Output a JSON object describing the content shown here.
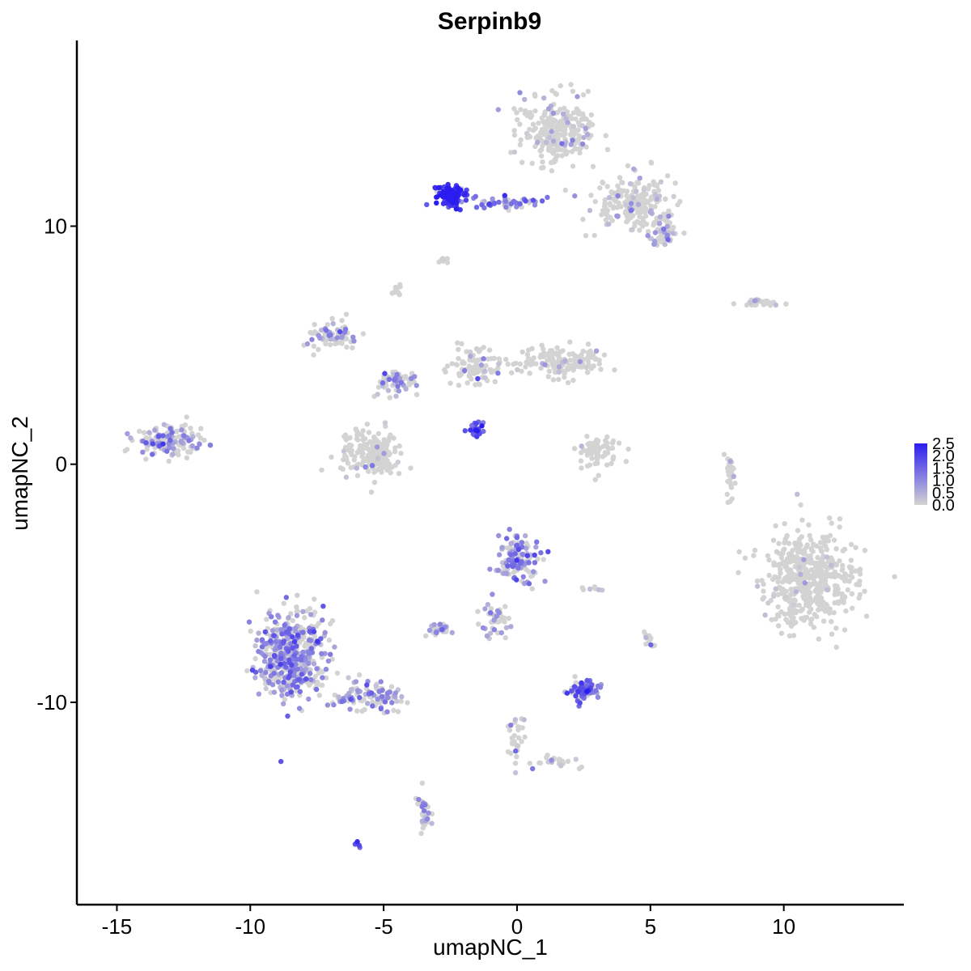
{
  "chart_data": {
    "type": "scatter",
    "title": "Serpinb9",
    "xlabel": "umapNC_1",
    "ylabel": "umapNC_2",
    "xlim": [
      -16.5,
      14.5
    ],
    "ylim": [
      -18.5,
      17.8
    ],
    "x_ticks": [
      -15,
      -10,
      -5,
      0,
      5,
      10
    ],
    "x_tick_labels": [
      "-15",
      "-10",
      "-5",
      "0",
      "5",
      "10"
    ],
    "y_ticks": [
      -10,
      0,
      10
    ],
    "y_tick_labels": [
      "-10",
      "0",
      "10"
    ],
    "grid": false,
    "legend_position": "right",
    "colorbar": {
      "min": 0.0,
      "max": 2.5,
      "ticks": [
        0.0,
        0.5,
        1.0,
        1.5,
        2.0,
        2.5
      ],
      "tick_labels": [
        "0.0",
        "0.5",
        "1.0",
        "1.5",
        "2.0",
        "2.5"
      ],
      "low_color": "#d3d3d3",
      "high_color": "#2b1cf0"
    },
    "clusters": [
      {
        "center": [
          1.5,
          14.0
        ],
        "spread": [
          1.2,
          1.3
        ],
        "n": 260,
        "expr": 0.25
      },
      {
        "center": [
          4.2,
          11.0
        ],
        "spread": [
          1.3,
          1.0
        ],
        "n": 200,
        "expr": 0.3
      },
      {
        "center": [
          5.5,
          9.8
        ],
        "spread": [
          0.5,
          0.6
        ],
        "n": 60,
        "expr": 0.6
      },
      {
        "center": [
          -2.5,
          11.3
        ],
        "spread": [
          0.5,
          0.4
        ],
        "n": 130,
        "expr": 2.2
      },
      {
        "center": [
          -0.5,
          11.0
        ],
        "spread": [
          1.2,
          0.2
        ],
        "n": 50,
        "expr": 1.2
      },
      {
        "center": [
          -2.8,
          8.6
        ],
        "spread": [
          0.2,
          0.2
        ],
        "n": 8,
        "expr": 0.1
      },
      {
        "center": [
          9.0,
          6.8
        ],
        "spread": [
          0.8,
          0.15
        ],
        "n": 30,
        "expr": 0.1
      },
      {
        "center": [
          -7.0,
          5.4
        ],
        "spread": [
          0.9,
          0.5
        ],
        "n": 70,
        "expr": 0.6
      },
      {
        "center": [
          -4.5,
          3.5
        ],
        "spread": [
          0.8,
          0.5
        ],
        "n": 60,
        "expr": 0.7
      },
      {
        "center": [
          -1.5,
          4.0
        ],
        "spread": [
          0.9,
          0.8
        ],
        "n": 90,
        "expr": 0.2
      },
      {
        "center": [
          1.5,
          4.3
        ],
        "spread": [
          1.4,
          0.6
        ],
        "n": 150,
        "expr": 0.08
      },
      {
        "center": [
          -5.5,
          0.5
        ],
        "spread": [
          1.0,
          0.9
        ],
        "n": 200,
        "expr": 0.08
      },
      {
        "center": [
          -4.5,
          7.3
        ],
        "spread": [
          0.15,
          0.25
        ],
        "n": 10,
        "expr": 0.5
      },
      {
        "center": [
          -1.5,
          1.4
        ],
        "spread": [
          0.3,
          0.25
        ],
        "n": 25,
        "expr": 2.0
      },
      {
        "center": [
          -13.0,
          1.0
        ],
        "spread": [
          1.1,
          0.6
        ],
        "n": 150,
        "expr": 0.7
      },
      {
        "center": [
          3.0,
          0.5
        ],
        "spread": [
          0.6,
          0.7
        ],
        "n": 70,
        "expr": 0.05
      },
      {
        "center": [
          8.0,
          -0.5
        ],
        "spread": [
          0.2,
          1.0
        ],
        "n": 30,
        "expr": 0.15
      },
      {
        "center": [
          11.0,
          -4.8
        ],
        "spread": [
          1.6,
          1.7
        ],
        "n": 500,
        "expr": 0.05
      },
      {
        "center": [
          0.0,
          -4.0
        ],
        "spread": [
          0.7,
          0.8
        ],
        "n": 130,
        "expr": 0.9
      },
      {
        "center": [
          -0.8,
          -6.5
        ],
        "spread": [
          0.5,
          0.8
        ],
        "n": 40,
        "expr": 0.6
      },
      {
        "center": [
          -3.0,
          -6.9
        ],
        "spread": [
          0.4,
          0.2
        ],
        "n": 30,
        "expr": 0.9
      },
      {
        "center": [
          -8.5,
          -8.0
        ],
        "spread": [
          1.1,
          1.7
        ],
        "n": 500,
        "expr": 0.9
      },
      {
        "center": [
          -5.5,
          -9.8
        ],
        "spread": [
          1.2,
          0.5
        ],
        "n": 100,
        "expr": 0.8
      },
      {
        "center": [
          2.5,
          -9.5
        ],
        "spread": [
          0.6,
          0.4
        ],
        "n": 80,
        "expr": 1.3
      },
      {
        "center": [
          0.0,
          -11.5
        ],
        "spread": [
          0.3,
          0.8
        ],
        "n": 30,
        "expr": 0.5
      },
      {
        "center": [
          1.5,
          -12.5
        ],
        "spread": [
          0.7,
          0.3
        ],
        "n": 25,
        "expr": 0.4
      },
      {
        "center": [
          -3.5,
          -14.5
        ],
        "spread": [
          0.2,
          0.8
        ],
        "n": 35,
        "expr": 0.7
      },
      {
        "center": [
          -6.0,
          -16.0
        ],
        "spread": [
          0.1,
          0.1
        ],
        "n": 6,
        "expr": 1.8
      },
      {
        "center": [
          5.0,
          -7.4
        ],
        "spread": [
          0.2,
          0.3
        ],
        "n": 12,
        "expr": 0.3
      },
      {
        "center": [
          2.8,
          -5.2
        ],
        "spread": [
          0.4,
          0.1
        ],
        "n": 8,
        "expr": 0.5
      }
    ]
  }
}
